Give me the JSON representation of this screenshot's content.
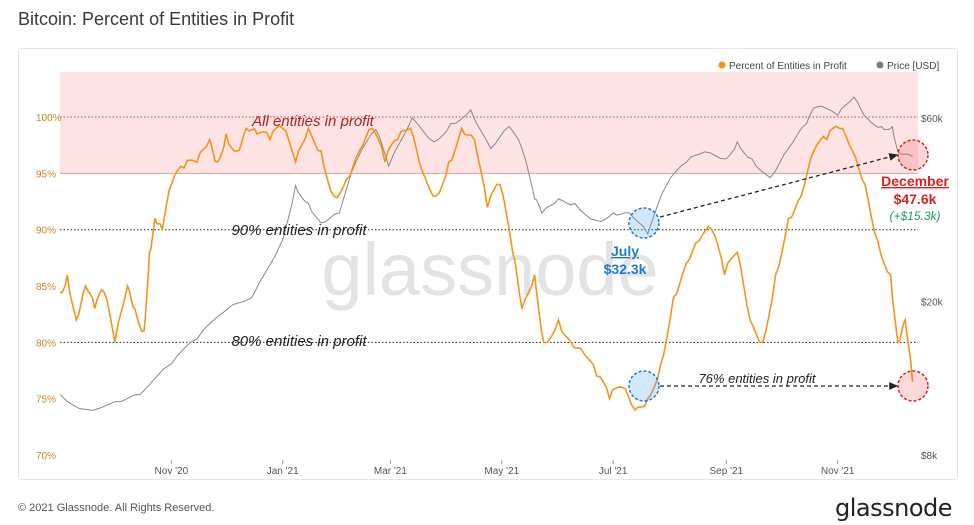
{
  "header": {
    "title": "Bitcoin: Percent of Entities in Profit"
  },
  "footer": {
    "copyright": "© 2021 Glassnode. All Rights Reserved.",
    "logo": "glassnode"
  },
  "watermark": "glassnode",
  "colors": {
    "profit": "#f7931a",
    "price": "#888888",
    "band": "#fde3e3",
    "band_line": "#e89a9a",
    "july": "#1f7bd1",
    "december": "#e02020",
    "gain": "#1f9d55"
  },
  "chart_data": {
    "type": "line",
    "title": "Bitcoin: Percent of Entities in Profit",
    "x_ticks": [
      "Nov '20",
      "Jan '21",
      "Mar '21",
      "May '21",
      "Jul '21",
      "Sep '21",
      "Nov '21"
    ],
    "y_left": {
      "ticks": [
        "100%",
        "95%",
        "90%",
        "85%",
        "80%",
        "75%",
        "70%"
      ],
      "range": [
        70,
        104
      ]
    },
    "y_right": {
      "ticks": [
        "$60k",
        "$20k",
        "$8k"
      ],
      "scale": "log"
    },
    "legend": {
      "position": "top-right",
      "items": [
        "Percent of Entities in Profit",
        "Price [USD]"
      ]
    },
    "series": [
      {
        "name": "Percent of Entities in Profit",
        "axis": "left",
        "dates": [
          "2020-09-01",
          "2020-09-05",
          "2020-09-10",
          "2020-09-15",
          "2020-09-20",
          "2020-09-25",
          "2020-10-01",
          "2020-10-08",
          "2020-10-12",
          "2020-10-17",
          "2020-10-20",
          "2020-10-23",
          "2020-10-27",
          "2020-11-01",
          "2020-11-08",
          "2020-11-15",
          "2020-11-22",
          "2020-11-26",
          "2020-12-01",
          "2020-12-07",
          "2020-12-12",
          "2020-12-18",
          "2020-12-25",
          "2021-01-01",
          "2021-01-08",
          "2021-01-15",
          "2021-01-22",
          "2021-01-29",
          "2021-02-05",
          "2021-02-12",
          "2021-02-19",
          "2021-02-26",
          "2021-03-05",
          "2021-03-12",
          "2021-03-19",
          "2021-03-26",
          "2021-04-02",
          "2021-04-09",
          "2021-04-16",
          "2021-04-23",
          "2021-04-30",
          "2021-05-07",
          "2021-05-12",
          "2021-05-19",
          "2021-05-24",
          "2021-06-01",
          "2021-06-08",
          "2021-06-15",
          "2021-06-22",
          "2021-06-29",
          "2021-07-06",
          "2021-07-13",
          "2021-07-20",
          "2021-07-27",
          "2021-08-03",
          "2021-08-10",
          "2021-08-17",
          "2021-08-24",
          "2021-08-31",
          "2021-09-07",
          "2021-09-14",
          "2021-09-21",
          "2021-09-28",
          "2021-10-05",
          "2021-10-12",
          "2021-10-19",
          "2021-10-26",
          "2021-11-02",
          "2021-11-09",
          "2021-11-16",
          "2021-11-23",
          "2021-11-30",
          "2021-12-04",
          "2021-12-08",
          "2021-12-12"
        ],
        "values": [
          84.5,
          86,
          82,
          85,
          83,
          84.5,
          80,
          85,
          83,
          81,
          88,
          91,
          90,
          94,
          95.5,
          96,
          98,
          96,
          98.5,
          97,
          99,
          98.5,
          98,
          99,
          96,
          99,
          97,
          93,
          94.5,
          97,
          99,
          96,
          98,
          99,
          95,
          93,
          96,
          99,
          98,
          92,
          94,
          88,
          83,
          86,
          80,
          82,
          80,
          79,
          77,
          75,
          76,
          74,
          75,
          78,
          84,
          87,
          89,
          90,
          86,
          88,
          82,
          80,
          86,
          91,
          93,
          97,
          98,
          99,
          97,
          94,
          89,
          86,
          80,
          82,
          76.5
        ]
      },
      {
        "name": "Price [USD]",
        "axis": "right",
        "dates": [
          "2020-09-01",
          "2020-09-15",
          "2020-10-01",
          "2020-10-15",
          "2020-11-01",
          "2020-11-15",
          "2020-12-01",
          "2020-12-15",
          "2021-01-01",
          "2021-01-08",
          "2021-01-15",
          "2021-01-22",
          "2021-02-01",
          "2021-02-10",
          "2021-02-21",
          "2021-02-28",
          "2021-03-13",
          "2021-03-25",
          "2021-04-03",
          "2021-04-14",
          "2021-04-25",
          "2021-05-05",
          "2021-05-12",
          "2021-05-19",
          "2021-05-23",
          "2021-06-01",
          "2021-06-10",
          "2021-06-22",
          "2021-07-01",
          "2021-07-10",
          "2021-07-20",
          "2021-07-30",
          "2021-08-10",
          "2021-08-20",
          "2021-09-01",
          "2021-09-07",
          "2021-09-15",
          "2021-09-25",
          "2021-10-05",
          "2021-10-15",
          "2021-10-20",
          "2021-11-01",
          "2021-11-10",
          "2021-11-17",
          "2021-11-25",
          "2021-12-01",
          "2021-12-04",
          "2021-12-12"
        ],
        "values": [
          11500,
          10500,
          11000,
          11500,
          13800,
          16000,
          19000,
          20500,
          29000,
          40000,
          36000,
          32000,
          34000,
          46000,
          56000,
          45000,
          60000,
          52000,
          58000,
          63000,
          50000,
          57000,
          50000,
          37000,
          34000,
          37000,
          36000,
          32500,
          34000,
          34000,
          30000,
          40000,
          46000,
          49000,
          47000,
          52000,
          47000,
          42000,
          50000,
          58000,
          64000,
          61000,
          68000,
          60000,
          57000,
          57000,
          49000,
          47600
        ]
      }
    ],
    "annotations": [
      {
        "text": "All entities in profit",
        "at": 100
      },
      {
        "text": "90% entities in profit",
        "at": 90
      },
      {
        "text": "80% entities in profit",
        "at": 80
      },
      {
        "text": "July",
        "price": "$32.3k"
      },
      {
        "text": "December",
        "price": "$47.6k",
        "change": "(+$15.3k)"
      },
      {
        "text": "76% entities in profit"
      }
    ]
  }
}
